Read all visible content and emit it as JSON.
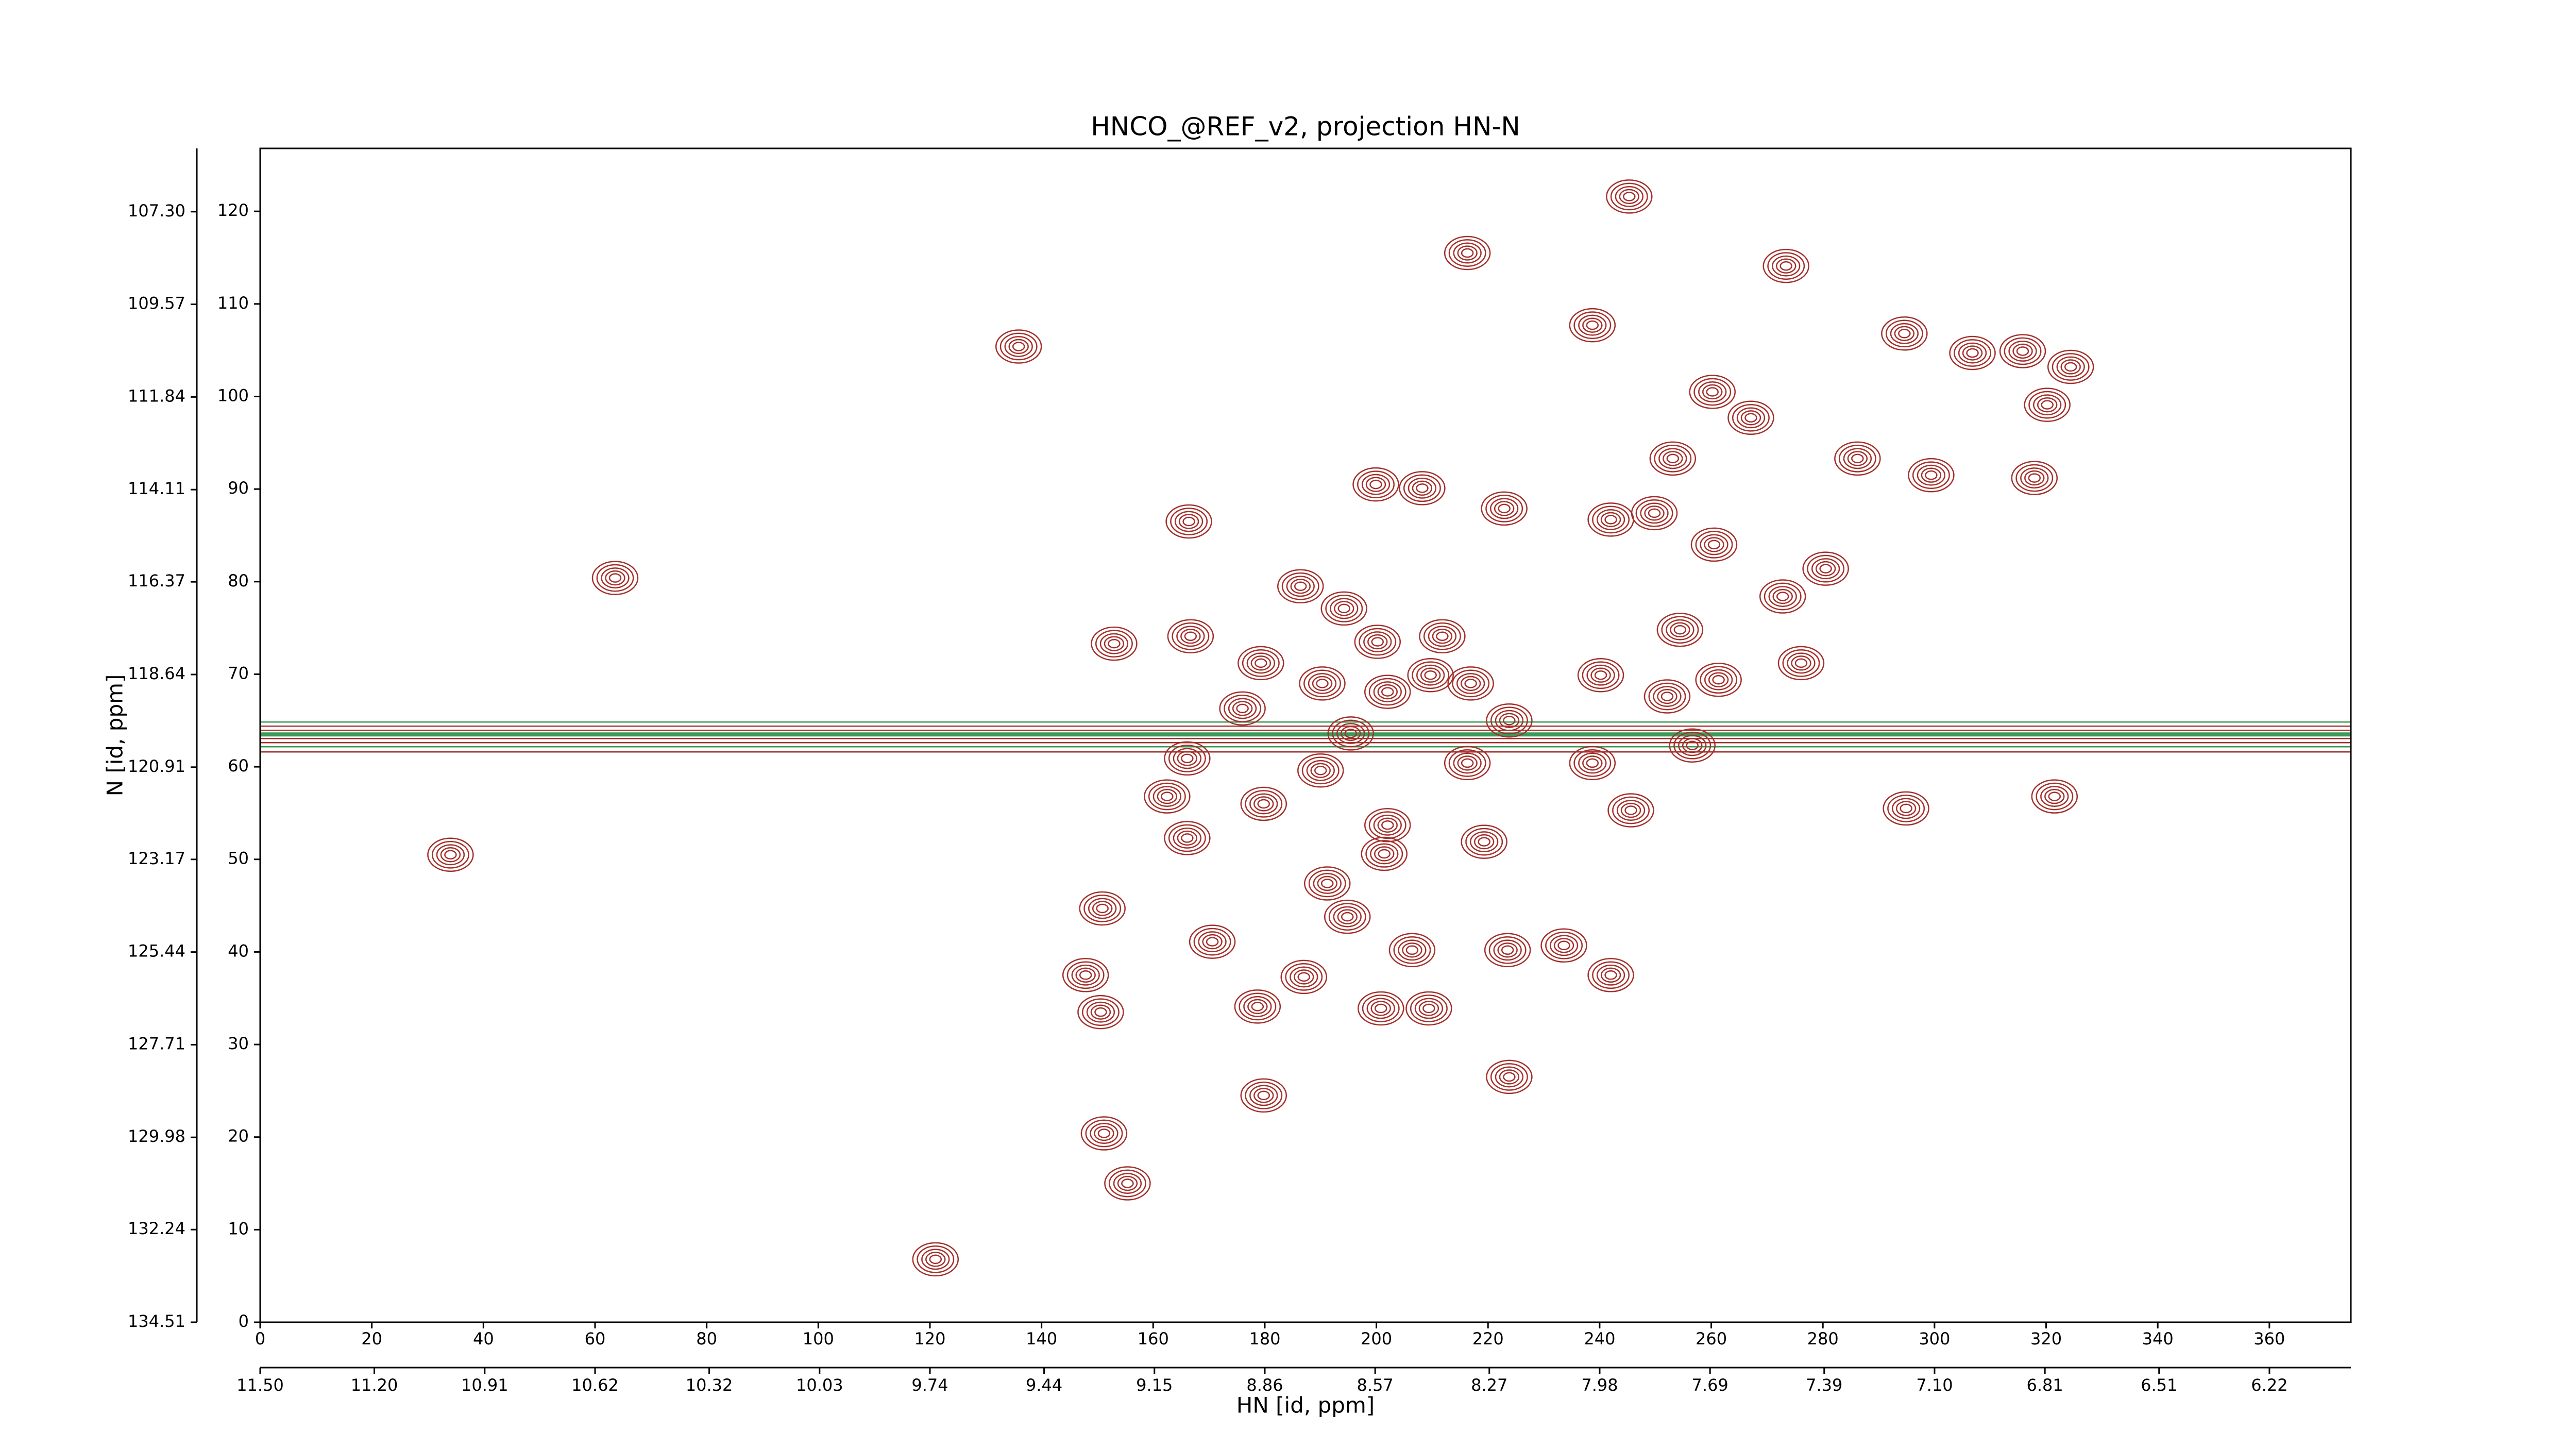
{
  "chart_data": {
    "type": "contour",
    "title": "HNCO_@REF_v2, projection HN-N",
    "x_label": "HN [id, ppm]",
    "y_label": "N [id, ppm]",
    "xlim": [
      0,
      374.6
    ],
    "ylim": [
      0,
      126.8
    ],
    "xticks": [
      0,
      20,
      40,
      60,
      80,
      100,
      120,
      140,
      160,
      180,
      200,
      220,
      240,
      260,
      280,
      300,
      320,
      340,
      360
    ],
    "yticks": [
      0,
      10,
      20,
      30,
      40,
      50,
      60,
      70,
      80,
      90,
      100,
      110,
      120
    ],
    "x2lim": [
      11.5,
      6.006
    ],
    "x2ticks": [
      {
        "value": 11.5,
        "label": "11.50"
      },
      {
        "value": 11.2,
        "label": "11.20"
      },
      {
        "value": 10.91,
        "label": "10.91"
      },
      {
        "value": 10.62,
        "label": "10.62"
      },
      {
        "value": 10.32,
        "label": "10.32"
      },
      {
        "value": 10.03,
        "label": "10.03"
      },
      {
        "value": 9.74,
        "label": "9.74"
      },
      {
        "value": 9.44,
        "label": "9.44"
      },
      {
        "value": 9.15,
        "label": "9.15"
      },
      {
        "value": 8.86,
        "label": "8.86"
      },
      {
        "value": 8.57,
        "label": "8.57"
      },
      {
        "value": 8.27,
        "label": "8.27"
      },
      {
        "value": 7.98,
        "label": "7.98"
      },
      {
        "value": 7.69,
        "label": "7.69"
      },
      {
        "value": 7.39,
        "label": "7.39"
      },
      {
        "value": 7.1,
        "label": "7.10"
      },
      {
        "value": 6.81,
        "label": "6.81"
      },
      {
        "value": 6.51,
        "label": "6.51"
      },
      {
        "value": 6.22,
        "label": "6.22"
      }
    ],
    "y2lim": [
      134.51,
      105.75
    ],
    "y2ticks": [
      {
        "value": 107.3,
        "label": "107.30"
      },
      109.57,
      111.84,
      114.11,
      116.37,
      118.64,
      120.91,
      123.17,
      125.44,
      127.71,
      129.98,
      132.24,
      134.51
    ],
    "peaks": {
      "color": "#a3302b",
      "x": [
        245.3,
        216.3,
        135.9,
        238.7,
        273.4,
        294.6,
        306.8,
        315.8,
        324.4,
        320.2,
        260.2,
        267.1,
        253.1,
        286.2,
        299.4,
        317.9,
        199.9,
        208.2,
        222.9,
        166.4,
        242.0,
        249.8,
        260.5,
        63.6,
        280.5,
        186.4,
        194.2,
        272.8,
        153.0,
        166.7,
        179.3,
        190.3,
        200.2,
        211.8,
        254.4,
        276.1,
        240.2,
        252.1,
        261.3,
        209.7,
        216.9,
        176.0,
        202.0,
        223.8,
        195.4,
        166.1,
        238.7,
        216.3,
        256.6,
        190.0,
        162.5,
        179.8,
        294.9,
        321.5,
        245.6,
        202.0,
        166.1,
        219.3,
        201.4,
        34.1,
        191.2,
        194.8,
        150.9,
        170.6,
        206.4,
        223.5,
        233.6,
        147.9,
        187.0,
        242.0,
        178.7,
        150.6,
        200.8,
        209.4,
        223.8,
        179.8,
        151.2,
        155.4,
        121.0
      ],
      "y": [
        121.6,
        115.5,
        105.4,
        107.7,
        114.1,
        106.8,
        104.7,
        104.9,
        103.2,
        99.1,
        100.5,
        97.7,
        93.3,
        93.3,
        91.5,
        91.2,
        90.5,
        90.1,
        87.9,
        86.5,
        86.7,
        87.4,
        84.0,
        80.4,
        81.4,
        79.5,
        77.1,
        78.4,
        73.3,
        74.1,
        71.2,
        69.0,
        73.5,
        74.1,
        74.8,
        71.2,
        69.9,
        67.6,
        69.4,
        69.9,
        69.0,
        66.3,
        68.1,
        65.0,
        63.6,
        60.9,
        60.4,
        60.4,
        62.3,
        59.6,
        56.8,
        56.0,
        55.5,
        56.8,
        55.3,
        53.7,
        52.3,
        51.9,
        50.6,
        50.5,
        47.4,
        43.8,
        44.7,
        41.1,
        40.2,
        40.2,
        40.7,
        37.5,
        37.3,
        37.5,
        34.1,
        33.5,
        33.9,
        33.9,
        26.5,
        24.5,
        20.4,
        15.0,
        6.8
      ]
    },
    "ridge": {
      "y": 63.5,
      "colors": [
        "#a3302b",
        "#3a9a5a"
      ]
    }
  }
}
